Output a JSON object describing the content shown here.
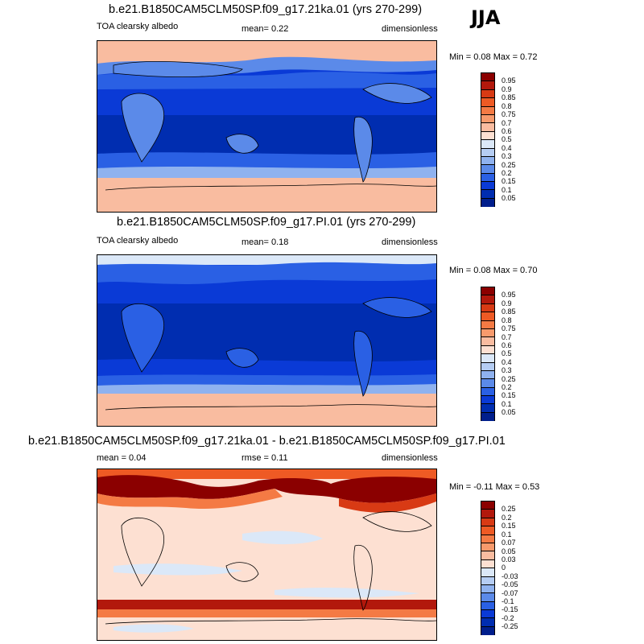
{
  "season": "JJA",
  "panels": [
    {
      "title": "b.e21.B1850CAM5CLM50SP.f09_g17.21ka.01 (yrs 270-299)",
      "left_label": "TOA clearsky albedo",
      "center_label": "mean=   0.22",
      "right_label": "dimensionless",
      "minmax": "Min =  0.08 Max =   0.72",
      "colorbar": {
        "levels": [
          "0.95",
          "0.9",
          "0.85",
          "0.8",
          "0.75",
          "0.7",
          "0.6",
          "0.5",
          "0.4",
          "0.3",
          "0.25",
          "0.2",
          "0.15",
          "0.1",
          "0.05"
        ],
        "colors": [
          "#8b0000",
          "#b2180c",
          "#d83a14",
          "#ee5a24",
          "#f47a44",
          "#f79a6c",
          "#f9bca0",
          "#fde0d2",
          "#dbe8f8",
          "#b5cdf3",
          "#8fb2ef",
          "#5b8ae9",
          "#2a60e4",
          "#0a3ad6",
          "#002db0",
          "#001e8c"
        ]
      }
    },
    {
      "title": "b.e21.B1850CAM5CLM50SP.f09_g17.PI.01 (yrs 270-299)",
      "left_label": "TOA clearsky albedo",
      "center_label": "mean=   0.18",
      "right_label": "dimensionless",
      "minmax": "Min =  0.08 Max =   0.70",
      "colorbar": {
        "levels": [
          "0.95",
          "0.9",
          "0.85",
          "0.8",
          "0.75",
          "0.7",
          "0.6",
          "0.5",
          "0.4",
          "0.3",
          "0.25",
          "0.2",
          "0.15",
          "0.1",
          "0.05"
        ],
        "colors": [
          "#8b0000",
          "#b2180c",
          "#d83a14",
          "#ee5a24",
          "#f47a44",
          "#f79a6c",
          "#f9bca0",
          "#fde0d2",
          "#dbe8f8",
          "#b5cdf3",
          "#8fb2ef",
          "#5b8ae9",
          "#2a60e4",
          "#0a3ad6",
          "#002db0",
          "#001e8c"
        ]
      }
    },
    {
      "title": "b.e21.B1850CAM5CLM50SP.f09_g17.21ka.01 - b.e21.B1850CAM5CLM50SP.f09_g17.PI.01",
      "left_label": "mean =   0.04",
      "center_label": "rmse =   0.11",
      "right_label": "dimensionless",
      "minmax": "Min =  -0.11 Max =   0.53",
      "colorbar": {
        "levels": [
          "0.25",
          "0.2",
          "0.15",
          "0.1",
          "0.07",
          "0.05",
          "0.03",
          "0",
          "-0.03",
          "-0.05",
          "-0.07",
          "-0.1",
          "-0.15",
          "-0.2",
          "-0.25"
        ],
        "colors": [
          "#8b0000",
          "#b2180c",
          "#d83a14",
          "#ee5a24",
          "#f47a44",
          "#f79a6c",
          "#f9bca0",
          "#fde0d2",
          "#dbe8f8",
          "#b5cdf3",
          "#8fb2ef",
          "#5b8ae9",
          "#2a60e4",
          "#0a3ad6",
          "#002db0",
          "#001e8c"
        ]
      }
    }
  ]
}
